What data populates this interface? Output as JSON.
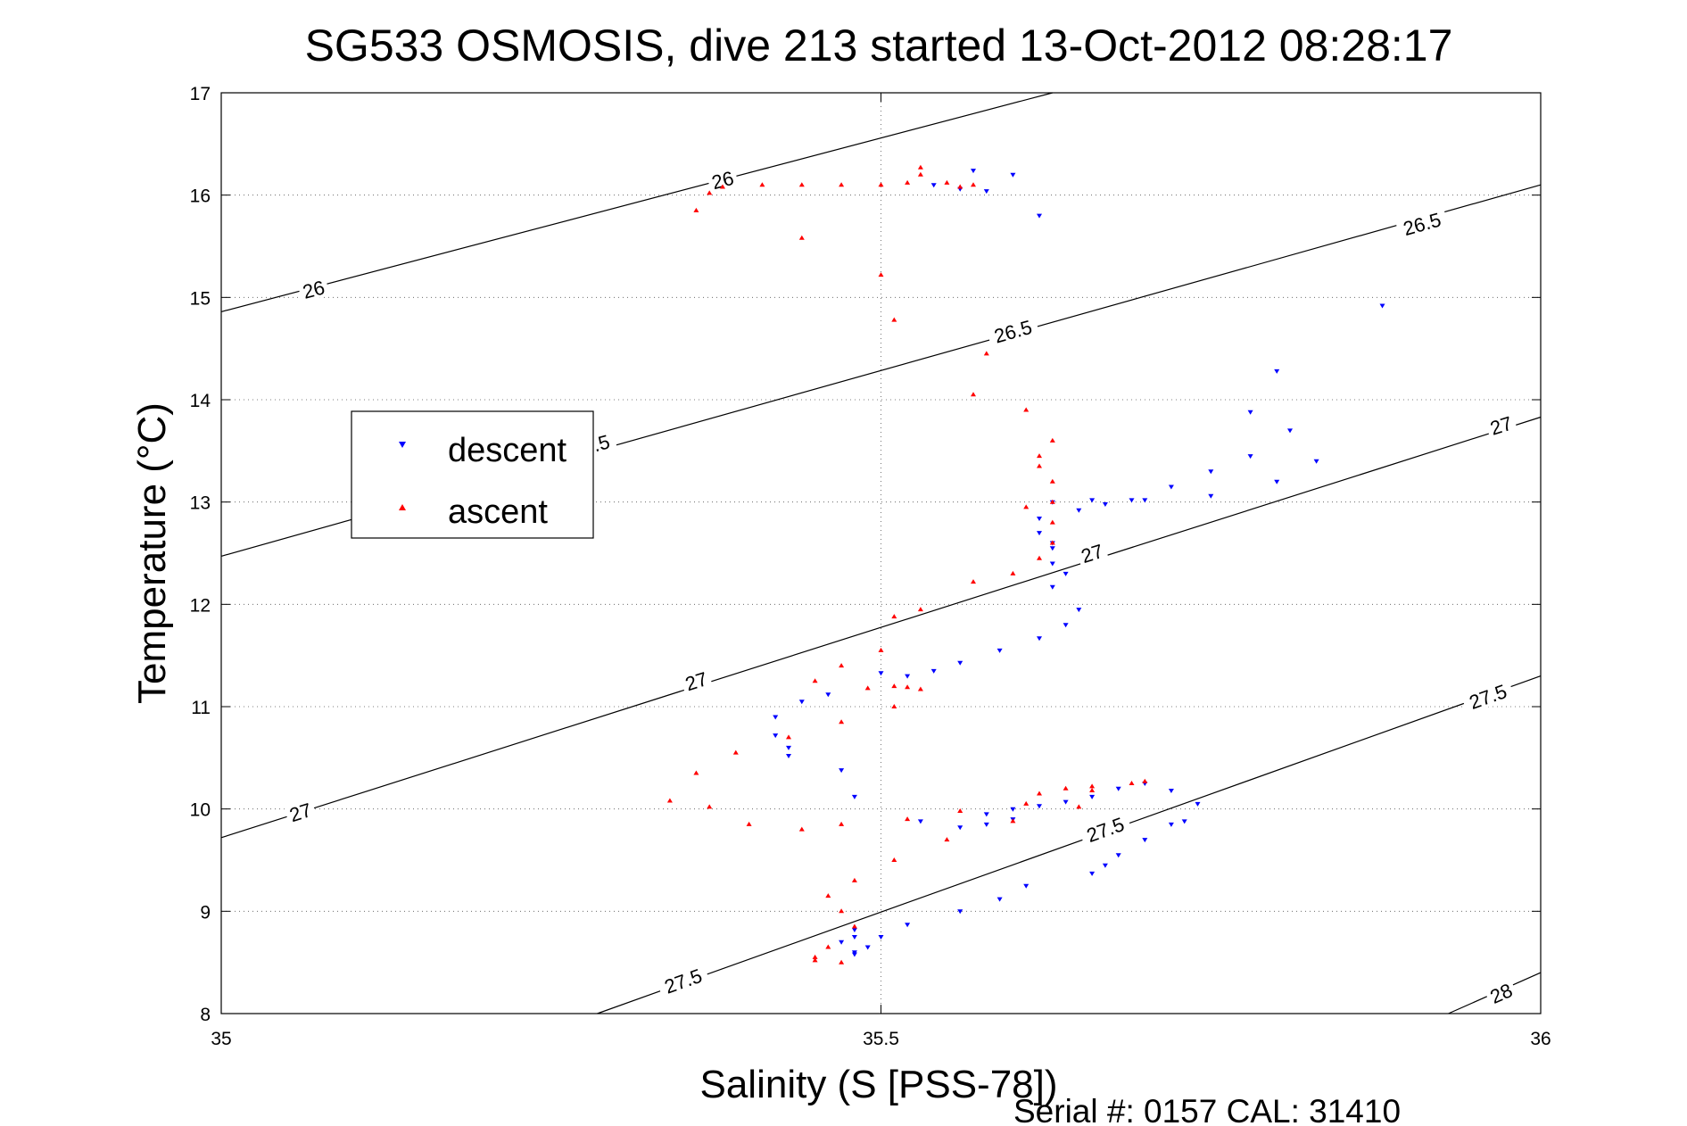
{
  "chart_data": {
    "type": "scatter",
    "title": "SG533 OSMOSIS, dive 213 started 13-Oct-2012 08:28:17",
    "xlabel": "Salinity (S [PSS-78])",
    "ylabel": "Temperature (°C)",
    "footer": "Serial #: 0157  CAL: 31410",
    "xlim": [
      35,
      36
    ],
    "ylim": [
      8,
      17
    ],
    "xticks": [
      "35",
      "35.5",
      "36"
    ],
    "yticks": [
      "8",
      "9",
      "10",
      "11",
      "12",
      "13",
      "14",
      "15",
      "16",
      "17"
    ],
    "grid": true,
    "legend_position": "upper-left",
    "colors": {
      "descent": "#0000ff",
      "ascent": "#ff0000",
      "contour": "#000000"
    },
    "density_contours": [
      {
        "label": "26",
        "lines": [
          [
            [
              35,
              14.86
            ],
            [
              35.63,
              17
            ]
          ]
        ],
        "label_points": [
          [
            35.07,
            15.08
          ],
          [
            35.38,
            16.15
          ]
        ]
      },
      {
        "label": "26.5",
        "lines": [
          [
            [
              35,
              12.47
            ],
            [
              36,
              16.1
            ]
          ]
        ],
        "label_points": [
          [
            35.28,
            13.55
          ],
          [
            35.6,
            14.67
          ],
          [
            35.91,
            15.72
          ]
        ]
      },
      {
        "label": "27",
        "lines": [
          [
            [
              35,
              9.72
            ],
            [
              36,
              13.83
            ]
          ]
        ],
        "label_points": [
          [
            35.06,
            9.97
          ],
          [
            35.36,
            11.25
          ],
          [
            35.66,
            12.5
          ],
          [
            35.97,
            13.75
          ]
        ]
      },
      {
        "label": "27.5",
        "lines": [
          [
            [
              35.285,
              8
            ],
            [
              36,
              11.3
            ]
          ]
        ],
        "label_points": [
          [
            35.35,
            8.32
          ],
          [
            35.67,
            9.8
          ],
          [
            35.96,
            11.1
          ]
        ]
      },
      {
        "label": "28",
        "lines": [
          [
            [
              35.93,
              8
            ],
            [
              36,
              8.4
            ]
          ]
        ],
        "label_points": [
          [
            35.97,
            8.2
          ]
        ]
      }
    ],
    "series": [
      {
        "name": "descent",
        "marker": "triangle-down",
        "x": [
          35.54,
          35.56,
          35.57,
          35.58,
          35.6,
          35.62,
          35.63,
          35.62,
          35.62,
          35.63,
          35.63,
          35.66,
          35.7,
          35.75,
          35.8,
          35.83,
          35.88,
          35.78,
          35.8,
          35.81,
          35.78,
          35.75,
          35.72,
          35.69,
          35.67,
          35.65,
          35.63,
          35.64,
          35.63,
          35.65,
          35.64,
          35.62,
          35.59,
          35.56,
          35.54,
          35.52,
          35.5,
          35.46,
          35.44,
          35.42,
          35.42,
          35.43,
          35.43,
          35.47,
          35.48,
          35.53,
          35.56,
          35.58,
          35.6,
          35.58,
          35.6,
          35.62,
          35.64,
          35.66,
          35.68,
          35.7,
          35.72,
          35.74,
          35.73,
          35.72,
          35.7,
          35.68,
          35.67,
          35.66,
          35.61,
          35.59,
          35.56,
          35.52,
          35.48,
          35.47,
          35.48,
          35.5,
          35.49,
          35.48,
          35.48
        ],
        "y": [
          16.1,
          16.06,
          16.24,
          16.04,
          16.2,
          15.8,
          13.0,
          12.84,
          12.7,
          12.6,
          12.4,
          13.02,
          13.02,
          13.06,
          13.2,
          13.4,
          14.92,
          13.88,
          14.28,
          13.7,
          13.45,
          13.3,
          13.15,
          13.02,
          12.98,
          12.92,
          12.55,
          12.3,
          12.17,
          11.95,
          11.8,
          11.67,
          11.55,
          11.43,
          11.35,
          11.3,
          11.33,
          11.12,
          11.05,
          10.9,
          10.72,
          10.6,
          10.52,
          10.38,
          10.12,
          9.88,
          9.82,
          9.85,
          9.9,
          9.95,
          10.0,
          10.03,
          10.07,
          10.12,
          10.2,
          10.25,
          10.18,
          10.05,
          9.88,
          9.85,
          9.7,
          9.55,
          9.45,
          9.37,
          9.25,
          9.12,
          9.0,
          8.87,
          8.75,
          8.7,
          8.82,
          8.75,
          8.65,
          8.6,
          8.58
        ]
      },
      {
        "name": "ascent",
        "marker": "triangle-up",
        "x": [
          35.37,
          35.38,
          35.41,
          35.44,
          35.47,
          35.5,
          35.52,
          35.53,
          35.55,
          35.57,
          35.56,
          35.53,
          35.44,
          35.36,
          35.5,
          35.51,
          35.57,
          35.58,
          35.61,
          35.63,
          35.62,
          35.62,
          35.63,
          35.63,
          35.61,
          35.63,
          35.63,
          35.62,
          35.6,
          35.57,
          35.53,
          35.51,
          35.5,
          35.47,
          35.45,
          35.49,
          35.51,
          35.52,
          35.53,
          35.51,
          35.47,
          35.43,
          35.39,
          35.36,
          35.34,
          35.37,
          35.4,
          35.44,
          35.47,
          35.52,
          35.56,
          35.61,
          35.62,
          35.64,
          35.66,
          35.7,
          35.69,
          35.66,
          35.65,
          35.6,
          35.55,
          35.51,
          35.48,
          35.46,
          35.47,
          35.48,
          35.46,
          35.45,
          35.45,
          35.47
        ],
        "y": [
          16.02,
          16.08,
          16.1,
          16.1,
          16.1,
          16.1,
          16.12,
          16.27,
          16.12,
          16.1,
          16.08,
          16.2,
          15.58,
          15.85,
          15.22,
          14.78,
          14.05,
          14.45,
          13.9,
          13.6,
          13.45,
          13.35,
          13.2,
          13.0,
          12.95,
          12.8,
          12.6,
          12.45,
          12.3,
          12.22,
          11.95,
          11.88,
          11.55,
          11.4,
          11.25,
          11.18,
          11.2,
          11.19,
          11.17,
          11.0,
          10.85,
          10.7,
          10.55,
          10.35,
          10.08,
          10.02,
          9.85,
          9.8,
          9.85,
          9.9,
          9.98,
          10.05,
          10.15,
          10.2,
          10.22,
          10.27,
          10.25,
          10.18,
          10.02,
          9.88,
          9.7,
          9.5,
          9.3,
          9.15,
          9.0,
          8.85,
          8.65,
          8.55,
          8.52,
          8.5
        ]
      }
    ]
  }
}
